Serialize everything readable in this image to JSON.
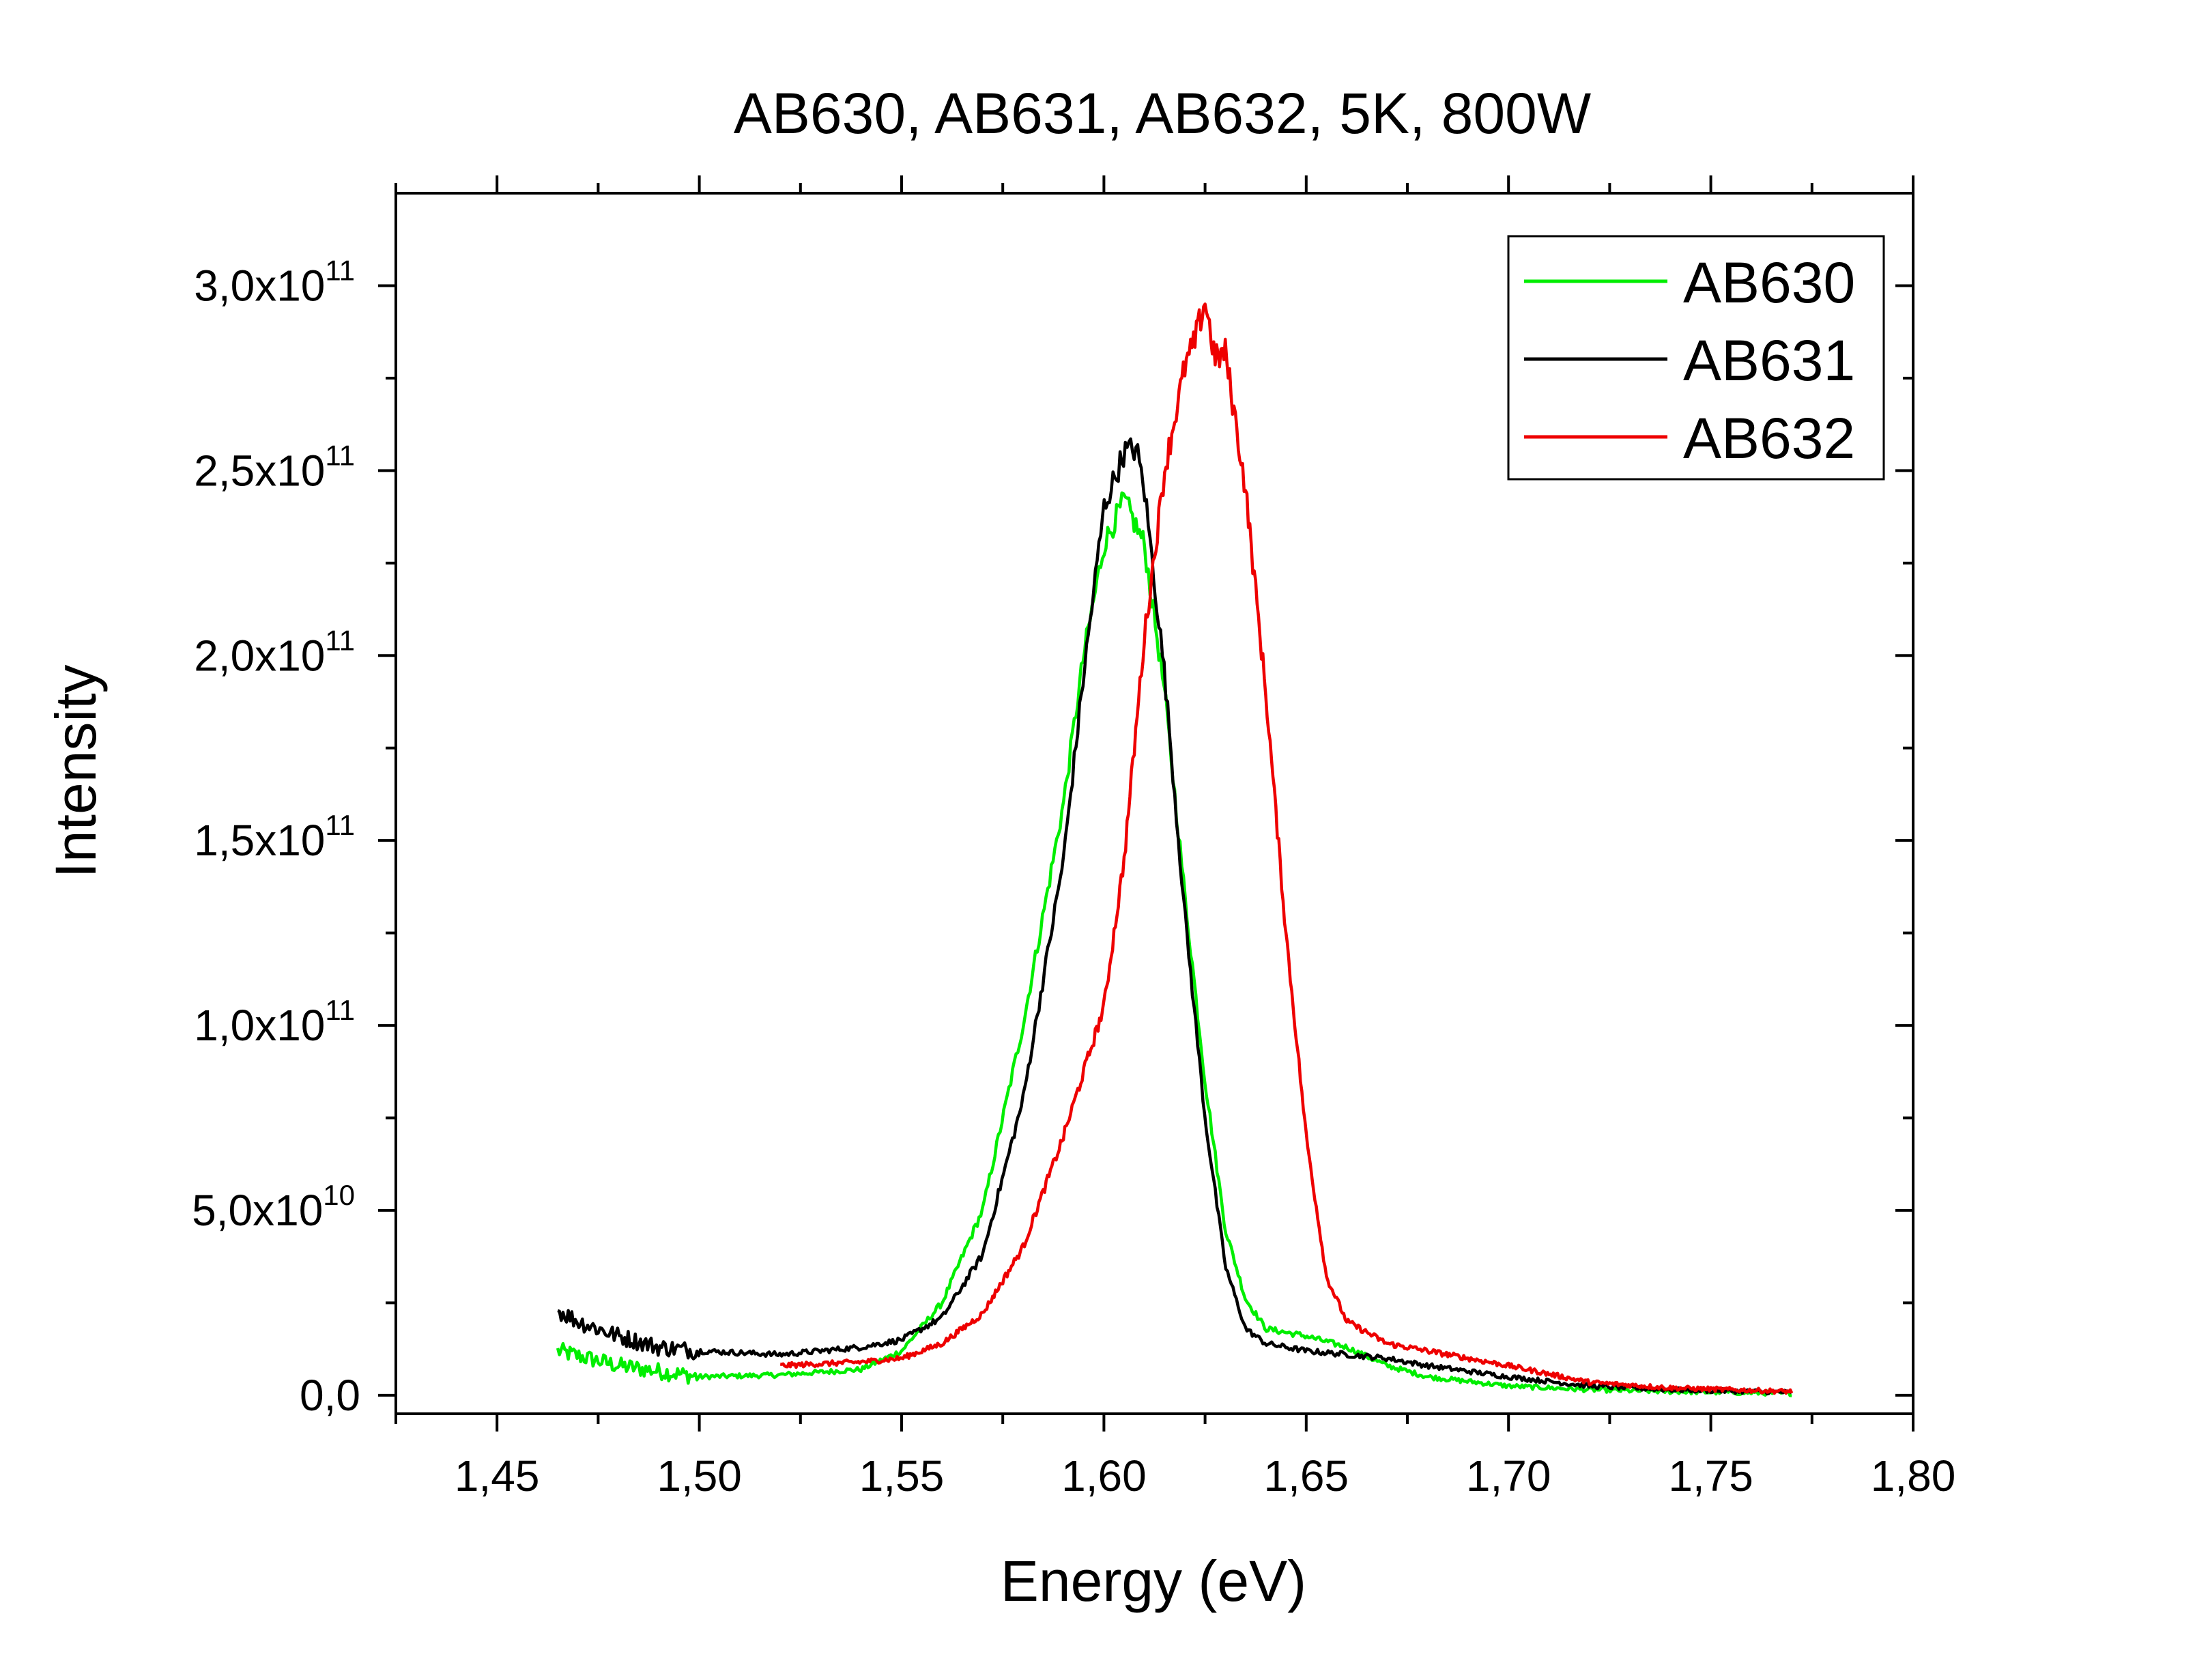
{
  "chart_data": {
    "type": "line",
    "title": "AB630, AB631, AB632, 5K, 800W",
    "xlabel": "Energy (eV)",
    "ylabel": "Intensity",
    "xlim": [
      1.425,
      1.8
    ],
    "ylim": [
      -5000000000.0,
      325000000000.0
    ],
    "x_ticks": [
      {
        "value": 1.45,
        "label": "1,45"
      },
      {
        "value": 1.5,
        "label": "1,50"
      },
      {
        "value": 1.55,
        "label": "1,55"
      },
      {
        "value": 1.6,
        "label": "1,60"
      },
      {
        "value": 1.65,
        "label": "1,65"
      },
      {
        "value": 1.7,
        "label": "1,70"
      },
      {
        "value": 1.75,
        "label": "1,75"
      },
      {
        "value": 1.8,
        "label": "1,80"
      }
    ],
    "y_ticks": [
      {
        "value": 0,
        "mantissa": "0,0",
        "exponent": ""
      },
      {
        "value": 50000000000.0,
        "mantissa": "5,0x10",
        "exponent": "10"
      },
      {
        "value": 100000000000.0,
        "mantissa": "1,0x10",
        "exponent": "11"
      },
      {
        "value": 150000000000.0,
        "mantissa": "1,5x10",
        "exponent": "11"
      },
      {
        "value": 200000000000.0,
        "mantissa": "2,0x10",
        "exponent": "11"
      },
      {
        "value": 250000000000.0,
        "mantissa": "2,5x10",
        "exponent": "11"
      },
      {
        "value": 300000000000.0,
        "mantissa": "3,0x10",
        "exponent": "11"
      }
    ],
    "grid": false,
    "legend_position": "top-right",
    "series": [
      {
        "name": "AB630",
        "color": "#00ee00",
        "x": [
          1.465,
          1.48,
          1.5,
          1.52,
          1.54,
          1.55,
          1.56,
          1.57,
          1.58,
          1.59,
          1.595,
          1.6,
          1.605,
          1.61,
          1.615,
          1.62,
          1.625,
          1.63,
          1.635,
          1.64,
          1.65,
          1.66,
          1.67,
          1.68,
          1.7,
          1.72,
          1.74,
          1.77
        ],
        "y": [
          12000000000.0,
          8000000000.0,
          5000000000.0,
          5500000000.0,
          7000000000.0,
          12000000000.0,
          25000000000.0,
          50000000000.0,
          100000000000.0,
          160000000000.0,
          200000000000.0,
          230000000000.0,
          242000000000.0,
          230000000000.0,
          190000000000.0,
          135000000000.0,
          85000000000.0,
          45000000000.0,
          26000000000.0,
          18000000000.0,
          16000000000.0,
          13000000000.0,
          8000000000.0,
          5000000000.0,
          2500000000.0,
          1500000000.0,
          1000000000.0,
          500000000.0
        ]
      },
      {
        "name": "AB631",
        "color": "#000000",
        "x": [
          1.465,
          1.47,
          1.48,
          1.49,
          1.5,
          1.52,
          1.54,
          1.55,
          1.56,
          1.57,
          1.58,
          1.59,
          1.595,
          1.6,
          1.605,
          1.608,
          1.61,
          1.615,
          1.62,
          1.625,
          1.63,
          1.635,
          1.64,
          1.65,
          1.66,
          1.67,
          1.68,
          1.7,
          1.72,
          1.74,
          1.77
        ],
        "y": [
          23000000000.0,
          20000000000.0,
          16000000000.0,
          13000000000.0,
          12000000000.0,
          11000000000.0,
          13000000000.0,
          15000000000.0,
          21000000000.0,
          38000000000.0,
          80000000000.0,
          145000000000.0,
          195000000000.0,
          240000000000.0,
          255000000000.0,
          256000000000.0,
          245000000000.0,
          195000000000.0,
          130000000000.0,
          75000000000.0,
          35000000000.0,
          18000000000.0,
          14000000000.0,
          12000000000.0,
          11000000000.0,
          10000000000.0,
          8000000000.0,
          5000000000.0,
          2500000000.0,
          1500000000.0,
          800000000.0
        ]
      },
      {
        "name": "AB632",
        "color": "#ee0000",
        "x": [
          1.52,
          1.53,
          1.54,
          1.55,
          1.56,
          1.57,
          1.58,
          1.59,
          1.6,
          1.605,
          1.61,
          1.615,
          1.62,
          1.6225,
          1.625,
          1.6275,
          1.63,
          1.635,
          1.64,
          1.645,
          1.65,
          1.655,
          1.66,
          1.67,
          1.68,
          1.69,
          1.7,
          1.72,
          1.74,
          1.77
        ],
        "y": [
          8000000000.0,
          8500000000.0,
          9000000000.0,
          10000000000.0,
          14000000000.0,
          22000000000.0,
          40000000000.0,
          70000000000.0,
          105000000000.0,
          145000000000.0,
          205000000000.0,
          250000000000.0,
          278000000000.0,
          285000000000.0,
          296000000000.0,
          280000000000.0,
          282000000000.0,
          245000000000.0,
          190000000000.0,
          125000000000.0,
          70000000000.0,
          32000000000.0,
          20000000000.0,
          14000000000.0,
          12000000000.0,
          10000000000.0,
          8000000000.0,
          3500000000.0,
          2000000000.0,
          1000000000.0
        ]
      }
    ]
  }
}
